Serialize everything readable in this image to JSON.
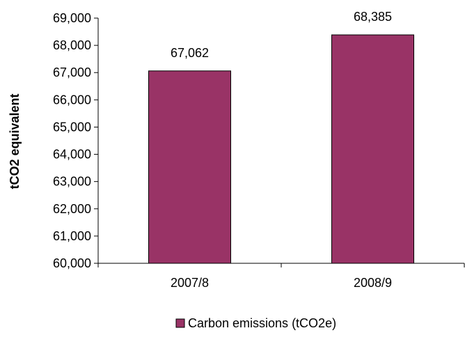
{
  "chart_data": {
    "type": "bar",
    "categories": [
      "2007/8",
      "2008/9"
    ],
    "series": [
      {
        "name": "Carbon emissions (tCO2e)",
        "values": [
          67062,
          68385
        ],
        "color": "#993366"
      }
    ],
    "data_labels": [
      "67,062",
      "68,385"
    ],
    "xlabel": "",
    "ylabel": "tCO2 equivalent",
    "ylim": [
      60000,
      69000
    ],
    "yticks": [
      60000,
      61000,
      62000,
      63000,
      64000,
      65000,
      66000,
      67000,
      68000,
      69000
    ],
    "ytick_labels": [
      "60,000",
      "61,000",
      "62,000",
      "63,000",
      "64,000",
      "65,000",
      "66,000",
      "67,000",
      "68,000",
      "69,000"
    ],
    "grid": false,
    "legend_position": "bottom"
  }
}
